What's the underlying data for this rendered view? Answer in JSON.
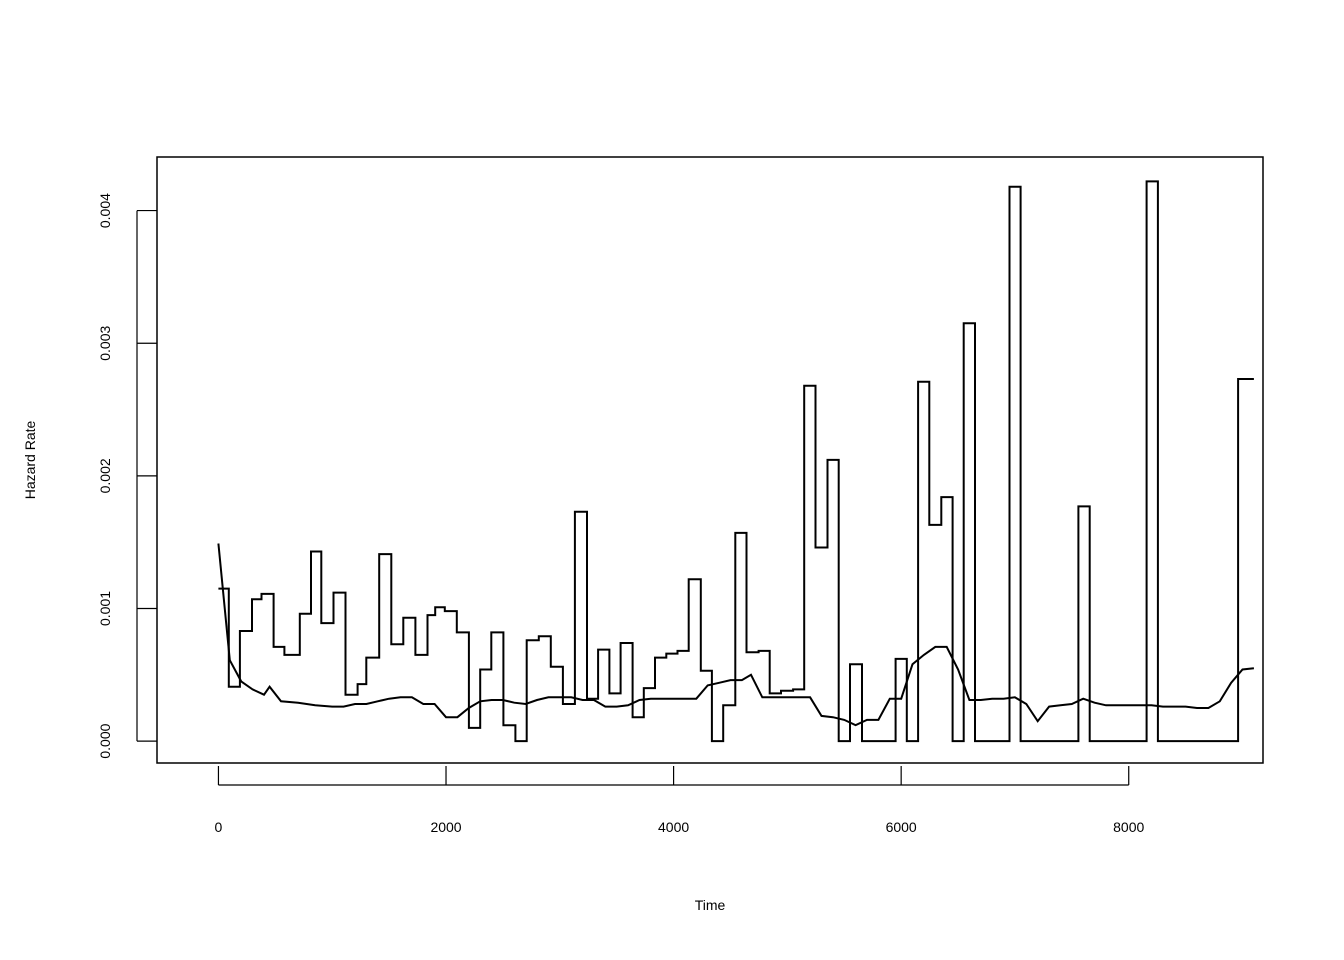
{
  "chart_data": {
    "type": "line",
    "xlabel": "Time",
    "ylabel": "Hazard Rate",
    "xlim": [
      -540,
      9180
    ],
    "ylim": [
      -0.000165,
      0.004404
    ],
    "xticks": [
      0,
      2000,
      4000,
      6000,
      8000
    ],
    "xtick_labels": [
      "0",
      "2000",
      "4000",
      "6000",
      "8000"
    ],
    "yticks": [
      0,
      0.001,
      0.002,
      0.003,
      0.004
    ],
    "ytick_labels": [
      "0.000",
      "0.001",
      "0.002",
      "0.003",
      "0.004"
    ],
    "grid": false,
    "legend": "none",
    "series": [
      {
        "style": "step",
        "color": "#000000",
        "x": [
          0,
          91,
          189,
          295,
          378,
          485,
          580,
          715,
          813,
          904,
          1011,
          1117,
          1223,
          1299,
          1413,
          1519,
          1625,
          1731,
          1837,
          1905,
          1989,
          2095,
          2201,
          2300,
          2398,
          2504,
          2610,
          2709,
          2815,
          2921,
          3027,
          3133,
          3239,
          3337,
          3436,
          3534,
          3640,
          3738,
          3837,
          3936,
          4034,
          4133,
          4239,
          4337,
          4436,
          4542,
          4641,
          4747,
          4845,
          4944,
          5050,
          5148,
          5247,
          5353,
          5451,
          5550,
          5656,
          5762,
          5853,
          5951,
          6050,
          6149,
          6247,
          6353,
          6452,
          6550,
          6649,
          6747,
          6853,
          6952,
          7050,
          7149,
          7255,
          7361,
          7460,
          7558,
          7657,
          7755,
          7854,
          7953,
          8059,
          8157,
          8256,
          8354,
          8460,
          8559,
          8657,
          8763,
          8862,
          8961
        ],
        "y": [
          0.00115,
          0.00041,
          0.00083,
          0.00107,
          0.00111,
          0.00071,
          0.00065,
          0.00096,
          0.00143,
          0.00089,
          0.00112,
          0.00035,
          0.00043,
          0.00063,
          0.00141,
          0.00073,
          0.00093,
          0.00065,
          0.00095,
          0.00101,
          0.00098,
          0.00082,
          0.0001,
          0.00054,
          0.00082,
          0.00012,
          0.0,
          0.00076,
          0.00079,
          0.00056,
          0.00028,
          0.00173,
          0.00032,
          0.00069,
          0.00036,
          0.00074,
          0.00018,
          0.0004,
          0.00063,
          0.00066,
          0.00068,
          0.00122,
          0.00053,
          0.0,
          0.00027,
          0.00157,
          0.00067,
          0.00068,
          0.00036,
          0.00038,
          0.00039,
          0.00268,
          0.00146,
          0.00212,
          0.0,
          0.00058,
          0.0,
          0.0,
          0.0,
          0.00062,
          0.0,
          0.00271,
          0.00163,
          0.00184,
          0.0,
          0.00315,
          0.0,
          0.0,
          0.0,
          0.00418,
          0.0,
          0.0,
          0.0,
          0.0,
          0.0,
          0.00177,
          0.0,
          0.0,
          0.0,
          0.0,
          0.0,
          0.00422,
          0.0,
          0.0,
          0.0,
          0.0,
          0.0,
          0.0,
          0.0,
          0.00273
        ],
        "x_end": 9100
      },
      {
        "style": "line",
        "color": "#000000",
        "x": [
          0,
          100,
          200,
          300,
          400,
          450,
          550,
          700,
          850,
          1000,
          1100,
          1200,
          1300,
          1400,
          1500,
          1600,
          1700,
          1800,
          1900,
          2000,
          2100,
          2200,
          2300,
          2400,
          2500,
          2600,
          2700,
          2800,
          2900,
          3000,
          3100,
          3200,
          3300,
          3400,
          3500,
          3600,
          3700,
          3800,
          3900,
          4000,
          4100,
          4200,
          4300,
          4400,
          4500,
          4600,
          4680,
          4780,
          4900,
          5000,
          5100,
          5200,
          5300,
          5400,
          5500,
          5600,
          5700,
          5800,
          5900,
          6000,
          6100,
          6200,
          6300,
          6400,
          6500,
          6600,
          6700,
          6800,
          6900,
          7000,
          7100,
          7200,
          7300,
          7400,
          7500,
          7600,
          7700,
          7800,
          7900,
          8000,
          8100,
          8200,
          8300,
          8400,
          8500,
          8600,
          8700,
          8800,
          8900,
          9000,
          9100
        ],
        "y": [
          0.00149,
          0.00061,
          0.00045,
          0.00039,
          0.00035,
          0.00041,
          0.0003,
          0.00029,
          0.00027,
          0.00026,
          0.00026,
          0.00028,
          0.00028,
          0.0003,
          0.00032,
          0.00033,
          0.00033,
          0.00028,
          0.00028,
          0.00018,
          0.00018,
          0.00025,
          0.0003,
          0.00031,
          0.00031,
          0.00029,
          0.00028,
          0.00031,
          0.00033,
          0.00033,
          0.00033,
          0.00031,
          0.00031,
          0.00026,
          0.00026,
          0.00027,
          0.00031,
          0.00032,
          0.00032,
          0.00032,
          0.00032,
          0.00032,
          0.00042,
          0.00044,
          0.00046,
          0.00046,
          0.0005,
          0.00033,
          0.00033,
          0.00033,
          0.00033,
          0.00033,
          0.00019,
          0.00018,
          0.00016,
          0.00012,
          0.00016,
          0.00016,
          0.00032,
          0.00032,
          0.00058,
          0.00065,
          0.00071,
          0.00071,
          0.00054,
          0.00031,
          0.00031,
          0.00032,
          0.00032,
          0.00033,
          0.00028,
          0.00015,
          0.00026,
          0.00027,
          0.00028,
          0.00032,
          0.00029,
          0.00027,
          0.00027,
          0.00027,
          0.00027,
          0.00027,
          0.00026,
          0.00026,
          0.00026,
          0.00025,
          0.00025,
          0.0003,
          0.00044,
          0.00054,
          0.00055
        ]
      }
    ]
  }
}
